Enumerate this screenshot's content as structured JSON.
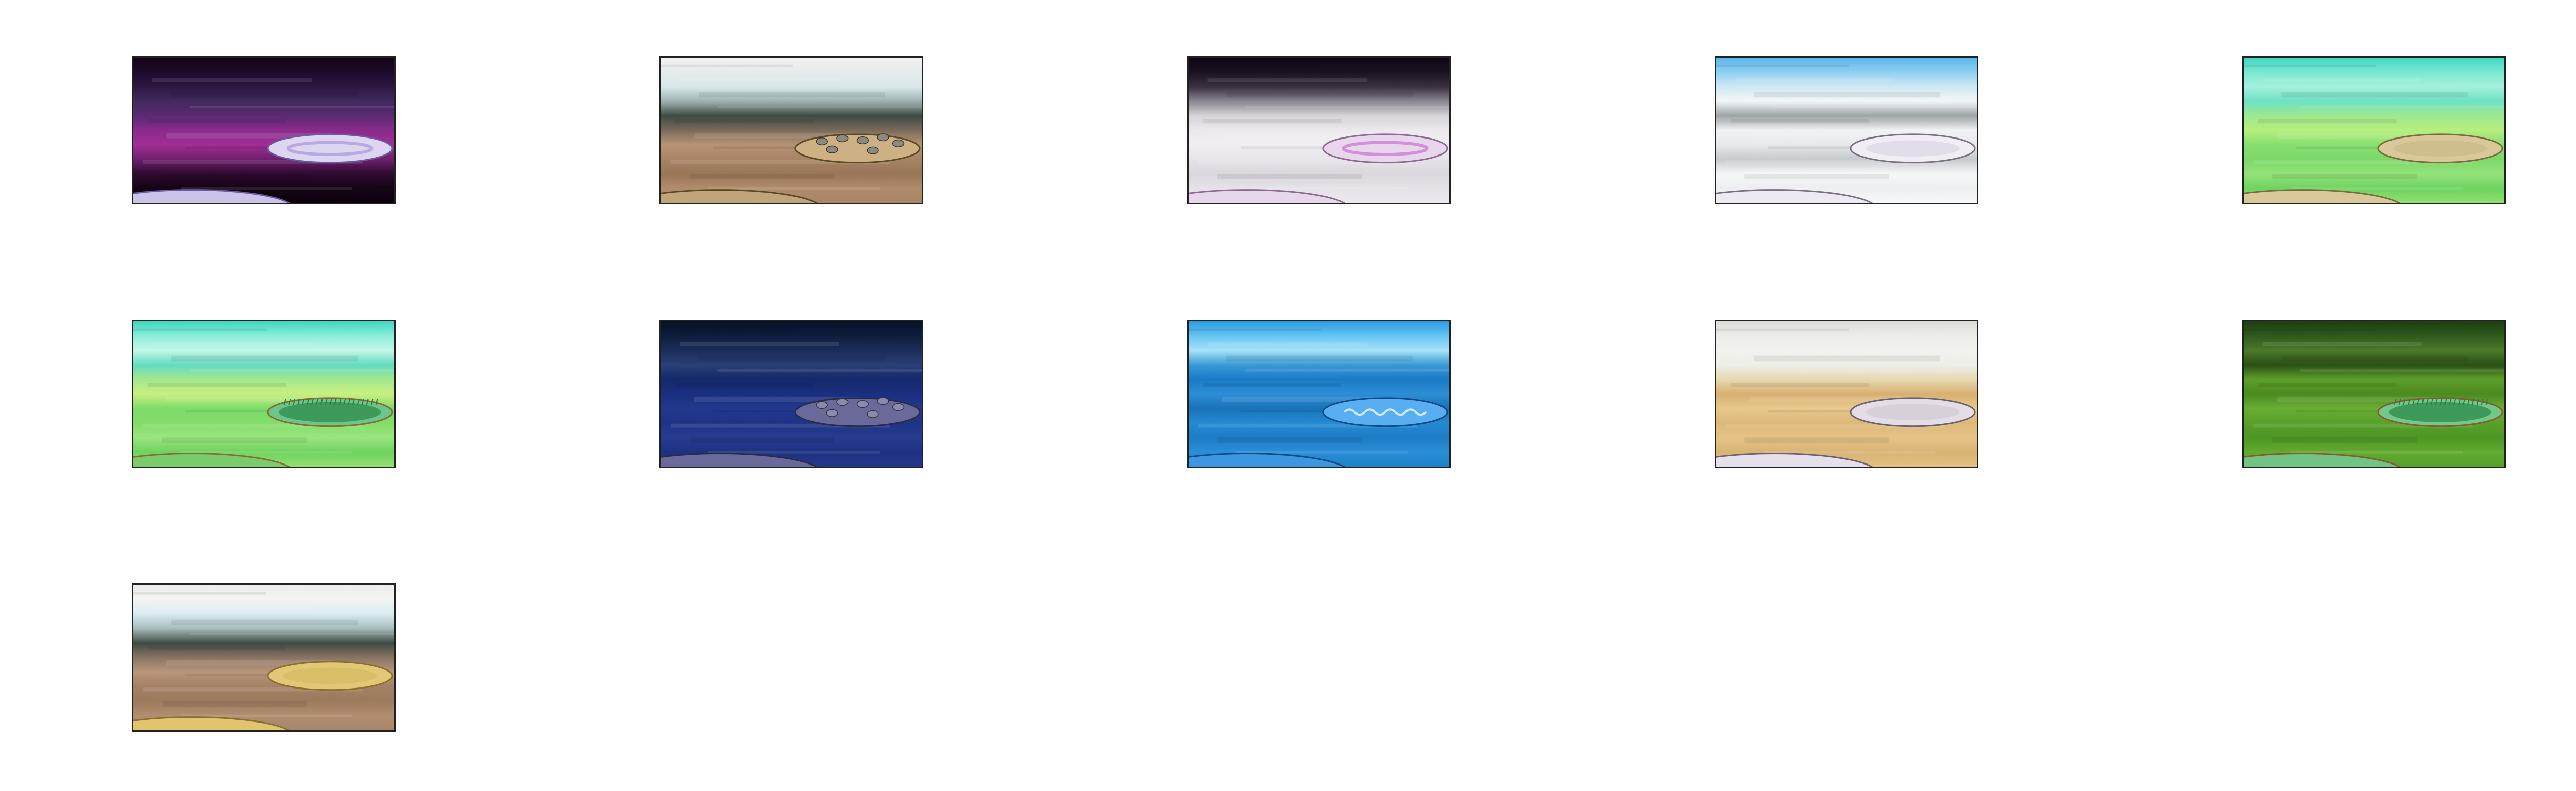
{
  "gallery": {
    "thumbnails": [
      {
        "name": "purple-night-arena",
        "bands": [
          "#120414",
          "#1d0a2b",
          "#2d1742",
          "#402a5e",
          "#5b2a72",
          "#8a2a8c",
          "#a12f94",
          "#6d1f6e",
          "#2e0a2f",
          "#140414",
          "#0c020c"
        ],
        "platform": {
          "fill": "#ddd6f0",
          "stroke": "#6a5aa0",
          "inner": "#b9a9e0",
          "style": "ring"
        },
        "ground": {
          "fill": "#cbc3e8",
          "stroke": "#6a5aa0"
        }
      },
      {
        "name": "dusty-rock-arena",
        "bands": [
          "#f2f4f3",
          "#e6eaea",
          "#d8e8ec",
          "#9fb2b0",
          "#3e4a44",
          "#7a6a5a",
          "#b89474",
          "#a88466",
          "#9a7658",
          "#b08c6c",
          "#a98564"
        ],
        "platform": {
          "fill": "#cdb083",
          "stroke": "#5a4a24",
          "inner": "#8d8a7a",
          "style": "rocks"
        },
        "ground": {
          "fill": "#c0a47a",
          "stroke": "#5a4a24"
        }
      },
      {
        "name": "misty-pink-arena",
        "bands": [
          "#0e0610",
          "#1a1220",
          "#3a3040",
          "#8a8690",
          "#d6d4d8",
          "#ebe9ec",
          "#f1eff2",
          "#e6e4e8",
          "#dad8dc",
          "#e4e2e6",
          "#eceaee"
        ],
        "platform": {
          "fill": "#e8d6ec",
          "stroke": "#8a6a90",
          "inner": "#d290d8",
          "style": "ring"
        },
        "ground": {
          "fill": "#e8d6ec",
          "stroke": "#8a6a90"
        }
      },
      {
        "name": "snow-sky-arena",
        "bands": [
          "#5ab4ea",
          "#8fd0f0",
          "#cfe8f4",
          "#f4f6f7",
          "#9ea3a6",
          "#f2f3f4",
          "#e7e9ea",
          "#c7cacc",
          "#f6f7f8",
          "#eceef0",
          "#f8f9fa"
        ],
        "platform": {
          "fill": "#f1edf5",
          "stroke": "#7a7080",
          "inner": "#d8d2e0",
          "style": "plain"
        },
        "ground": {
          "fill": "#eeeaf2",
          "stroke": "#7a7080"
        }
      },
      {
        "name": "grass-field-sand-arena",
        "bands": [
          "#3ed6c2",
          "#7ae8d2",
          "#a4f0dc",
          "#6ee2c6",
          "#9ee88e",
          "#b7ee7e",
          "#86e070",
          "#7bd868",
          "#93e27a",
          "#6fd460",
          "#8fe070"
        ],
        "platform": {
          "fill": "#d8c89a",
          "stroke": "#7a6a40",
          "inner": "#c9b886",
          "style": "plain"
        },
        "ground": {
          "fill": "#d8c89a",
          "stroke": "#7a6a40"
        }
      },
      {
        "name": "grass-field-grass-arena",
        "bands": [
          "#3ed6c2",
          "#8aeed8",
          "#c4f6e6",
          "#62dcc0",
          "#a4e88e",
          "#c8f080",
          "#7edc6a",
          "#82dc68",
          "#9ce680",
          "#6ed25e",
          "#92e070"
        ],
        "platform": {
          "fill": "#6ac68a",
          "stroke": "#8a6a30",
          "inner": "#3e9a5a",
          "style": "grass"
        },
        "ground": {
          "fill": "#78cc6c",
          "stroke": "#8a6a30"
        }
      },
      {
        "name": "deep-night-rock-arena",
        "bands": [
          "#061226",
          "#0e1d3c",
          "#1b2d58",
          "#2a3e78",
          "#14296a",
          "#1a2f80",
          "#22388c",
          "#1e3386",
          "#273c90",
          "#1d3282",
          "#23378a"
        ],
        "platform": {
          "fill": "#6a6a9a",
          "stroke": "#2a2a4a",
          "inner": "#8a8ab0",
          "style": "rocks"
        },
        "ground": {
          "fill": "#6a6a9a",
          "stroke": "#2a2a4a"
        }
      },
      {
        "name": "ocean-water-arena",
        "bands": [
          "#2a9ae0",
          "#66c4f2",
          "#a8e2f8",
          "#3a9ad6",
          "#1a7ac6",
          "#2c8ed6",
          "#1a72b8",
          "#248ad2",
          "#1c7cc4",
          "#2a8ed8",
          "#1f82c8"
        ],
        "platform": {
          "fill": "#58aef0",
          "stroke": "#0e4a86",
          "inner": "#cfeaff",
          "style": "waves"
        },
        "ground": {
          "fill": "#3c96e0",
          "stroke": "#0e4a86"
        }
      },
      {
        "name": "desert-sand-arena",
        "bands": [
          "#dcdcd8",
          "#ecece8",
          "#f2f2ee",
          "#eeeeea",
          "#e6d8b0",
          "#d8b070",
          "#e8c88c",
          "#dcb878",
          "#e6c488",
          "#d8b474",
          "#e4c080"
        ],
        "platform": {
          "fill": "#e4dde6",
          "stroke": "#6a6070",
          "inner": "#cfc6d2",
          "style": "plain"
        },
        "ground": {
          "fill": "#e6e0ea",
          "stroke": "#6a6070"
        }
      },
      {
        "name": "dark-forest-arena",
        "bands": [
          "#1e3e12",
          "#2e5a1a",
          "#4a7a2a",
          "#2a5016",
          "#5e9e2a",
          "#4a8a20",
          "#6aae34",
          "#58a02a",
          "#4e9624",
          "#62aa30",
          "#56a02a"
        ],
        "platform": {
          "fill": "#72c888",
          "stroke": "#8a5a30",
          "inner": "#3e9a5a",
          "style": "grass"
        },
        "ground": {
          "fill": "#70c484",
          "stroke": "#8a5a30"
        }
      },
      {
        "name": "beach-sand-arena",
        "bands": [
          "#ececea",
          "#f4f4f2",
          "#d8ecf0",
          "#a8bcba",
          "#3e4a44",
          "#8a7462",
          "#b8967a",
          "#a48064",
          "#9c7a5e",
          "#b28e70",
          "#a8866a"
        ],
        "platform": {
          "fill": "#e2c874",
          "stroke": "#8a7030",
          "inner": "#d4b860",
          "style": "plain"
        },
        "ground": {
          "fill": "#e0c46e",
          "stroke": "#8a7030"
        }
      }
    ]
  }
}
